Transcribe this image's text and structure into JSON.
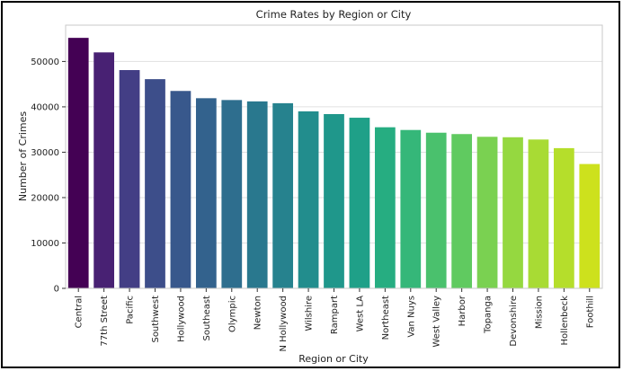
{
  "chart_data": {
    "type": "bar",
    "title": "Crime Rates by Region or City",
    "xlabel": "Region or City",
    "ylabel": "Number of Crimes",
    "categories": [
      "Central",
      "77th Street",
      "Pacific",
      "Southwest",
      "Hollywood",
      "Southeast",
      "Olympic",
      "Newton",
      "N Hollywood",
      "Wilshire",
      "Rampart",
      "West LA",
      "Northeast",
      "Van Nuys",
      "West Valley",
      "Harbor",
      "Topanga",
      "Devonshire",
      "Mission",
      "Hollenbeck",
      "Foothill"
    ],
    "values": [
      55200,
      52000,
      48100,
      46100,
      43500,
      41900,
      41500,
      41200,
      40800,
      39000,
      38400,
      37600,
      35500,
      34900,
      34300,
      34000,
      33400,
      33300,
      32800,
      30900,
      27400
    ],
    "ylim": [
      0,
      58000
    ],
    "yticks": [
      0,
      10000,
      20000,
      30000,
      40000,
      50000
    ],
    "grid": "y",
    "palette": "viridis",
    "colors": [
      "#440154",
      "#482173",
      "#433e85",
      "#3d4e8a",
      "#38588c",
      "#33628d",
      "#2e6e8e",
      "#29788e",
      "#26828e",
      "#228d8d",
      "#1f978b",
      "#1fa088",
      "#26ad81",
      "#35b779",
      "#4ac16d",
      "#60ca60",
      "#7ad151",
      "#95d840",
      "#a8db34",
      "#b5de2b",
      "#cde11d"
    ]
  }
}
